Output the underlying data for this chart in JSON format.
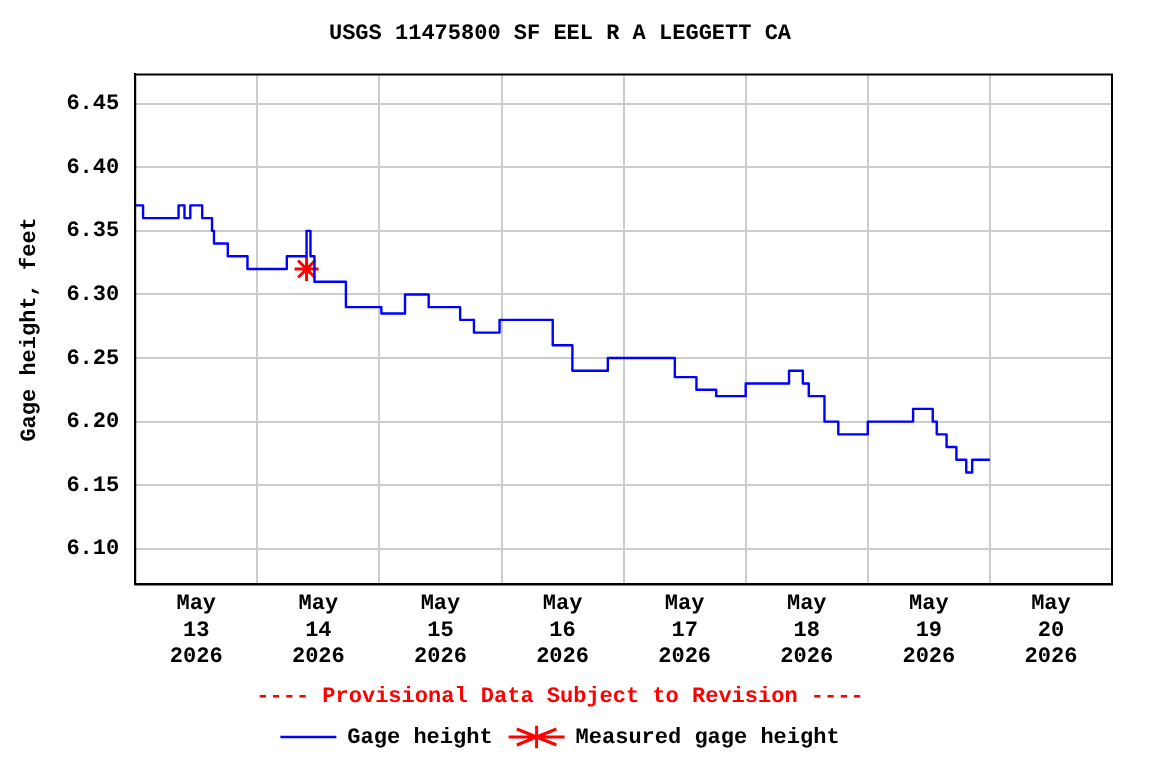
{
  "chart_data": {
    "type": "step",
    "title": "USGS 11475800 SF EEL R A LEGGETT CA",
    "ylabel": "Gage height, feet",
    "annotations": [
      "---- Provisional Data Subject to Revision ----"
    ],
    "xlim": [
      "2026-05-13T00:00",
      "2026-05-21T00:00"
    ],
    "xticks": [
      {
        "value": "2026-05-13T00:00",
        "label": null
      },
      {
        "value": "2026-05-13T12:00",
        "label": "May 13 2026"
      },
      {
        "value": "2026-05-14T00:00",
        "label": null
      },
      {
        "value": "2026-05-14T12:00",
        "label": "May 14 2026"
      },
      {
        "value": "2026-05-15T00:00",
        "label": null
      },
      {
        "value": "2026-05-15T12:00",
        "label": "May 15 2026"
      },
      {
        "value": "2026-05-16T00:00",
        "label": null
      },
      {
        "value": "2026-05-16T12:00",
        "label": "May 16 2026"
      },
      {
        "value": "2026-05-17T00:00",
        "label": null
      },
      {
        "value": "2026-05-17T12:00",
        "label": "May 17 2026"
      },
      {
        "value": "2026-05-18T00:00",
        "label": null
      },
      {
        "value": "2026-05-18T12:00",
        "label": "May 18 2026"
      },
      {
        "value": "2026-05-19T00:00",
        "label": null
      },
      {
        "value": "2026-05-19T12:00",
        "label": "May 19 2026"
      },
      {
        "value": "2026-05-20T00:00",
        "label": null
      },
      {
        "value": "2026-05-20T12:00",
        "label": "May 20 2026"
      },
      {
        "value": "2026-05-21T00:00",
        "label": null
      }
    ],
    "ylim": [
      6.072,
      6.473
    ],
    "yticks": [
      {
        "value": 6.1,
        "label": "6.10"
      },
      {
        "value": 6.15,
        "label": "6.15"
      },
      {
        "value": 6.2,
        "label": "6.20"
      },
      {
        "value": 6.25,
        "label": "6.25"
      },
      {
        "value": 6.3,
        "label": "6.30"
      },
      {
        "value": 6.35,
        "label": "6.35"
      },
      {
        "value": 6.4,
        "label": "6.40"
      },
      {
        "value": 6.45,
        "label": "6.45"
      }
    ],
    "grid": true,
    "legend": "bottom",
    "series": [
      {
        "name": "Gage height",
        "color": "#0000ff",
        "marker": "none",
        "line_style": "solid",
        "x": [
          "2026-05-13T00:00",
          "2026-05-13T01:33",
          "2026-05-13T08:31",
          "2026-05-13T09:41",
          "2026-05-13T10:50",
          "2026-05-13T13:10",
          "2026-05-13T15:06",
          "2026-05-13T15:29",
          "2026-05-13T18:12",
          "2026-05-13T22:04",
          "2026-05-14T05:48",
          "2026-05-14T09:41",
          "2026-05-14T10:27",
          "2026-05-14T11:14",
          "2026-05-14T17:25",
          "2026-05-15T00:23",
          "2026-05-15T05:02",
          "2026-05-15T09:41",
          "2026-05-15T15:52",
          "2026-05-15T18:35",
          "2026-05-15T23:37",
          "2026-05-16T10:04",
          "2026-05-16T13:56",
          "2026-05-16T20:54",
          "2026-05-17T10:04",
          "2026-05-17T14:19",
          "2026-05-17T18:12",
          "2026-05-18T00:00",
          "2026-05-18T08:31",
          "2026-05-18T11:14",
          "2026-05-18T12:24",
          "2026-05-18T15:29",
          "2026-05-18T18:12",
          "2026-05-19T00:00",
          "2026-05-19T08:54",
          "2026-05-19T12:46",
          "2026-05-19T13:33",
          "2026-05-19T15:29",
          "2026-05-19T17:25",
          "2026-05-19T19:21",
          "2026-05-19T20:31",
          "2026-05-19T22:27",
          "2026-05-20T00:00"
        ],
        "values": [
          6.37,
          6.36,
          6.37,
          6.36,
          6.37,
          6.36,
          6.35,
          6.34,
          6.33,
          6.32,
          6.33,
          6.35,
          6.33,
          6.31,
          6.29,
          6.285,
          6.3,
          6.29,
          6.28,
          6.27,
          6.28,
          6.26,
          6.24,
          6.25,
          6.235,
          6.225,
          6.22,
          6.23,
          6.24,
          6.23,
          6.22,
          6.2,
          6.19,
          6.2,
          6.21,
          6.2,
          6.19,
          6.18,
          6.17,
          6.16,
          6.17,
          6.17,
          6.17
        ]
      },
      {
        "name": "Measured gage height",
        "type": "scatter",
        "color": "#ff0000",
        "marker": "cross",
        "x": [
          "2026-05-14T09:41"
        ],
        "values": [
          6.32
        ]
      }
    ]
  }
}
